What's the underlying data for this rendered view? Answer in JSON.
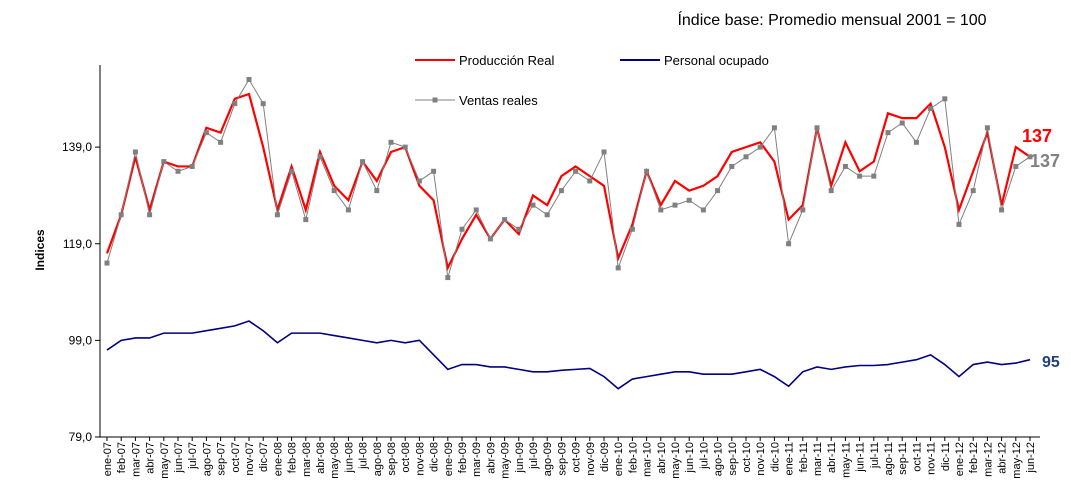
{
  "chart_data": {
    "type": "line",
    "subtitle": "Índice base: Promedio mensual 2001 = 100",
    "y_label": "Indices",
    "categories": [
      "ene-07",
      "feb-07",
      "mar-07",
      "abr-07",
      "may-07",
      "jun-07",
      "jul-07",
      "ago-07",
      "sep-07",
      "oct-07",
      "nov-07",
      "dic-07",
      "ene-08",
      "feb-08",
      "mar-08",
      "abr-08",
      "may-08",
      "jun-08",
      "jul-08",
      "ago-08",
      "sep-08",
      "oct-08",
      "nov-08",
      "dic-08",
      "ene-09",
      "feb-09",
      "mar-09",
      "abr-09",
      "may-09",
      "jun-09",
      "jul-09",
      "ago-09",
      "sep-09",
      "oct-09",
      "nov-09",
      "dic-09",
      "ene-10",
      "feb-10",
      "mar-10",
      "abr-10",
      "may-10",
      "jun-10",
      "jul-10",
      "ago-10",
      "sep-10",
      "oct-10",
      "nov-10",
      "dic-10",
      "ene-11",
      "feb-11",
      "mar-11",
      "abr-11",
      "may-11",
      "jun-11",
      "jul-11",
      "ago-11",
      "sep-11",
      "oct-11",
      "nov-11",
      "dic-11",
      "ene-12",
      "feb-12",
      "mar-12",
      "abr-12",
      "may-12",
      "jun-12"
    ],
    "series": [
      {
        "name": "Producción Real",
        "color": "#ff0000",
        "values": [
          117,
          125,
          137,
          126,
          136,
          135,
          135,
          143,
          142,
          149,
          150,
          139,
          126,
          135,
          126,
          138,
          131,
          128,
          136,
          132,
          138,
          139,
          131,
          128,
          114,
          120,
          125,
          120,
          124,
          121,
          129,
          127,
          133,
          135,
          133,
          131,
          116,
          123,
          134,
          127,
          132,
          130,
          131,
          133,
          138,
          139,
          140,
          136,
          124,
          127,
          143,
          131,
          140,
          134,
          136,
          146,
          145,
          145,
          148,
          139,
          126,
          134,
          142,
          127,
          139,
          137
        ]
      },
      {
        "name": "Personal ocupado",
        "color": "#000080",
        "values": [
          97,
          99,
          99.5,
          99.5,
          100.5,
          100.5,
          100.5,
          101,
          101.5,
          102,
          103,
          101,
          98.5,
          100.5,
          100.5,
          100.5,
          100,
          99.5,
          99,
          98.5,
          99,
          98.5,
          99,
          96,
          93,
          94,
          94,
          93.5,
          93.5,
          93,
          92.5,
          92.5,
          92.8,
          93,
          93.2,
          91.5,
          89,
          91,
          91.5,
          92,
          92.5,
          92.5,
          92,
          92,
          92,
          92.5,
          93,
          91.5,
          89.5,
          92.5,
          93.5,
          93,
          93.5,
          93.8,
          93.8,
          94,
          94.5,
          95,
          96,
          94,
          91.5,
          94,
          94.5,
          94,
          94.3,
          95
        ]
      },
      {
        "name": "Ventas reales",
        "color": "#808080",
        "values": [
          115,
          125,
          138,
          125,
          136,
          134,
          135,
          142,
          140,
          148,
          153,
          148,
          125,
          134,
          124,
          137,
          130,
          126,
          136,
          130,
          140,
          139,
          132,
          134,
          112,
          122,
          126,
          120,
          124,
          122,
          127,
          125,
          130,
          134,
          132,
          138,
          114,
          122,
          134,
          126,
          127,
          128,
          126,
          130,
          135,
          137,
          139,
          143,
          119,
          126,
          143,
          130,
          135,
          133,
          133,
          142,
          144,
          140,
          147,
          149,
          123,
          130,
          143,
          126,
          135,
          137
        ]
      }
    ],
    "ylim": [
      79,
      156
    ],
    "yticks": [
      {
        "value": 79,
        "label": "79,0"
      },
      {
        "value": 99,
        "label": "99,0"
      },
      {
        "value": 119,
        "label": "119,0"
      },
      {
        "value": 139,
        "label": "139,0"
      }
    ]
  }
}
